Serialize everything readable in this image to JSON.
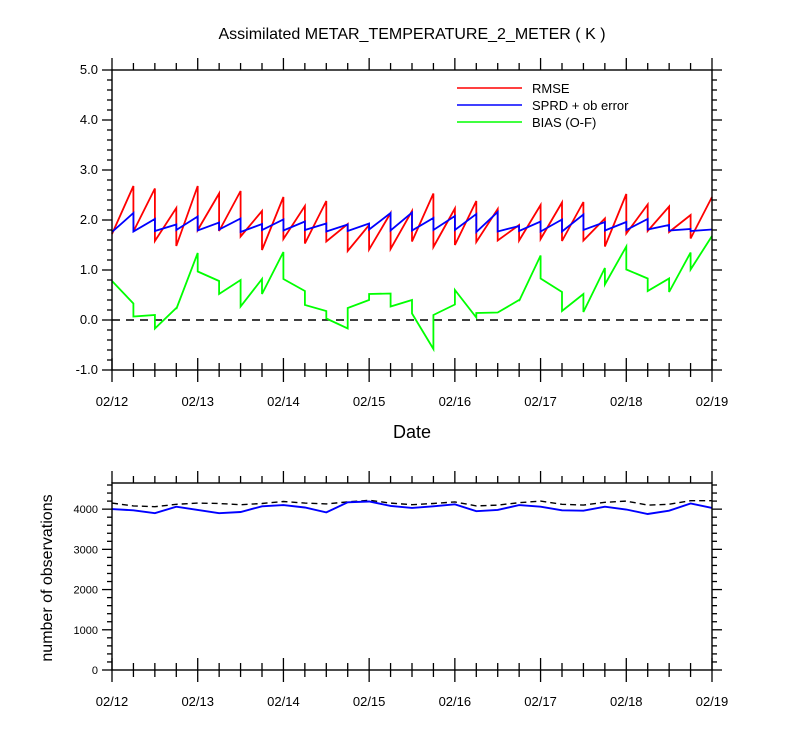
{
  "chart_data": [
    {
      "type": "line",
      "title": "Assimilated METAR_TEMPERATURE_2_METER ( K )",
      "xlabel": "Date",
      "ylabel": "",
      "x_ticklabels": [
        "02/12",
        "02/13",
        "02/14",
        "02/15",
        "02/16",
        "02/17",
        "02/18",
        "02/19"
      ],
      "xlim": [
        0,
        7
      ],
      "ylim": [
        -1.0,
        5.0
      ],
      "y_ticks": [
        -1.0,
        0.0,
        1.0,
        2.0,
        3.0,
        4.0,
        5.0
      ],
      "y_ticklabels": [
        "-1.0",
        "0.0",
        "1.0",
        "2.0",
        "3.0",
        "4.0",
        "5.0"
      ],
      "legend_position": "top-right",
      "reference_line": {
        "y": 0.0,
        "style": "dashed"
      },
      "series": [
        {
          "name": "RMSE",
          "color": "#ff0000",
          "points": [
            [
              0.0,
              1.72
            ],
            [
              0.25,
              2.68
            ],
            [
              0.25,
              1.77
            ],
            [
              0.5,
              2.63
            ],
            [
              0.5,
              1.58
            ],
            [
              0.75,
              2.24
            ],
            [
              0.75,
              1.48
            ],
            [
              1.0,
              2.68
            ],
            [
              1.0,
              1.8
            ],
            [
              1.25,
              2.53
            ],
            [
              1.25,
              1.78
            ],
            [
              1.5,
              2.58
            ],
            [
              1.5,
              1.67
            ],
            [
              1.75,
              2.18
            ],
            [
              1.75,
              1.4
            ],
            [
              2.0,
              2.46
            ],
            [
              2.0,
              1.62
            ],
            [
              2.25,
              2.28
            ],
            [
              2.25,
              1.53
            ],
            [
              2.5,
              2.38
            ],
            [
              2.5,
              1.57
            ],
            [
              2.75,
              1.92
            ],
            [
              2.75,
              1.38
            ],
            [
              3.0,
              1.9
            ],
            [
              3.0,
              1.41
            ],
            [
              3.25,
              2.14
            ],
            [
              3.25,
              1.42
            ],
            [
              3.5,
              2.18
            ],
            [
              3.5,
              1.57
            ],
            [
              3.75,
              2.53
            ],
            [
              3.75,
              1.46
            ],
            [
              4.0,
              2.23
            ],
            [
              4.0,
              1.5
            ],
            [
              4.25,
              2.38
            ],
            [
              4.25,
              1.56
            ],
            [
              4.5,
              2.22
            ],
            [
              4.5,
              1.59
            ],
            [
              4.75,
              1.9
            ],
            [
              4.75,
              1.59
            ],
            [
              5.0,
              2.3
            ],
            [
              5.0,
              1.62
            ],
            [
              5.25,
              2.35
            ],
            [
              5.25,
              1.58
            ],
            [
              5.5,
              2.36
            ],
            [
              5.5,
              1.59
            ],
            [
              5.75,
              2.03
            ],
            [
              5.75,
              1.47
            ],
            [
              6.0,
              2.52
            ],
            [
              6.0,
              1.73
            ],
            [
              6.25,
              2.31
            ],
            [
              6.25,
              1.78
            ],
            [
              6.5,
              2.27
            ],
            [
              6.5,
              1.76
            ],
            [
              6.75,
              2.1
            ],
            [
              6.75,
              1.63
            ],
            [
              7.0,
              2.46
            ]
          ]
        },
        {
          "name": "SPRD + ob error",
          "color": "#0000ff",
          "points": [
            [
              0.0,
              1.76
            ],
            [
              0.25,
              2.14
            ],
            [
              0.25,
              1.77
            ],
            [
              0.5,
              2.02
            ],
            [
              0.5,
              1.78
            ],
            [
              0.75,
              1.91
            ],
            [
              0.75,
              1.8
            ],
            [
              1.0,
              2.07
            ],
            [
              1.0,
              1.79
            ],
            [
              1.25,
              1.95
            ],
            [
              1.25,
              1.81
            ],
            [
              1.5,
              2.03
            ],
            [
              1.5,
              1.76
            ],
            [
              1.75,
              1.92
            ],
            [
              1.75,
              1.8
            ],
            [
              2.0,
              2.01
            ],
            [
              2.0,
              1.79
            ],
            [
              2.25,
              1.97
            ],
            [
              2.25,
              1.8
            ],
            [
              2.5,
              1.93
            ],
            [
              2.5,
              1.77
            ],
            [
              2.75,
              1.91
            ],
            [
              2.75,
              1.78
            ],
            [
              3.0,
              1.93
            ],
            [
              3.0,
              1.81
            ],
            [
              3.25,
              2.14
            ],
            [
              3.25,
              1.79
            ],
            [
              3.5,
              2.15
            ],
            [
              3.5,
              1.79
            ],
            [
              3.75,
              2.04
            ],
            [
              3.75,
              1.8
            ],
            [
              4.0,
              2.08
            ],
            [
              4.0,
              1.8
            ],
            [
              4.25,
              2.12
            ],
            [
              4.25,
              1.76
            ],
            [
              4.5,
              2.16
            ],
            [
              4.5,
              1.77
            ],
            [
              4.75,
              1.88
            ],
            [
              4.75,
              1.78
            ],
            [
              5.0,
              1.97
            ],
            [
              5.0,
              1.77
            ],
            [
              5.25,
              2.01
            ],
            [
              5.25,
              1.77
            ],
            [
              5.5,
              2.11
            ],
            [
              5.5,
              1.8
            ],
            [
              5.75,
              1.96
            ],
            [
              5.75,
              1.79
            ],
            [
              6.0,
              1.96
            ],
            [
              6.0,
              1.8
            ],
            [
              6.25,
              2.02
            ],
            [
              6.25,
              1.81
            ],
            [
              6.5,
              1.9
            ],
            [
              6.5,
              1.79
            ],
            [
              6.75,
              1.82
            ],
            [
              6.75,
              1.78
            ],
            [
              7.0,
              1.81
            ]
          ]
        },
        {
          "name": "BIAS (O-F)",
          "color": "#00ff00",
          "points": [
            [
              0.0,
              0.78
            ],
            [
              0.25,
              0.33
            ],
            [
              0.25,
              0.07
            ],
            [
              0.5,
              0.1
            ],
            [
              0.5,
              -0.17
            ],
            [
              0.75,
              0.24
            ],
            [
              0.75,
              0.22
            ],
            [
              1.0,
              1.34
            ],
            [
              1.0,
              0.97
            ],
            [
              1.25,
              0.78
            ],
            [
              1.25,
              0.52
            ],
            [
              1.5,
              0.8
            ],
            [
              1.5,
              0.27
            ],
            [
              1.75,
              0.82
            ],
            [
              1.75,
              0.52
            ],
            [
              2.0,
              1.36
            ],
            [
              2.0,
              0.82
            ],
            [
              2.25,
              0.58
            ],
            [
              2.25,
              0.3
            ],
            [
              2.5,
              0.18
            ],
            [
              2.5,
              0.03
            ],
            [
              2.75,
              -0.17
            ],
            [
              2.75,
              0.24
            ],
            [
              3.0,
              0.4
            ],
            [
              3.0,
              0.52
            ],
            [
              3.25,
              0.53
            ],
            [
              3.25,
              0.27
            ],
            [
              3.5,
              0.4
            ],
            [
              3.5,
              0.13
            ],
            [
              3.75,
              -0.58
            ],
            [
              3.75,
              0.1
            ],
            [
              4.0,
              0.31
            ],
            [
              4.0,
              0.6
            ],
            [
              4.25,
              0.05
            ],
            [
              4.25,
              0.14
            ],
            [
              4.5,
              0.15
            ],
            [
              4.5,
              0.15
            ],
            [
              4.75,
              0.4
            ],
            [
              4.75,
              0.38
            ],
            [
              5.0,
              1.29
            ],
            [
              5.0,
              0.83
            ],
            [
              5.25,
              0.56
            ],
            [
              5.25,
              0.18
            ],
            [
              5.5,
              0.52
            ],
            [
              5.5,
              0.16
            ],
            [
              5.75,
              1.04
            ],
            [
              5.75,
              0.71
            ],
            [
              6.0,
              1.47
            ],
            [
              6.0,
              1.01
            ],
            [
              6.25,
              0.83
            ],
            [
              6.25,
              0.58
            ],
            [
              6.5,
              0.83
            ],
            [
              6.5,
              0.56
            ],
            [
              6.75,
              1.35
            ],
            [
              6.75,
              1.01
            ],
            [
              7.0,
              1.68
            ]
          ]
        }
      ]
    },
    {
      "type": "line",
      "title": "",
      "xlabel": "",
      "ylabel": "number of observations",
      "x_ticklabels": [
        "02/12",
        "02/13",
        "02/14",
        "02/15",
        "02/16",
        "02/17",
        "02/18",
        "02/19"
      ],
      "xlim": [
        0,
        7
      ],
      "ylim": [
        0,
        4650
      ],
      "y_ticks": [
        0,
        1000,
        2000,
        3000,
        4000
      ],
      "y_ticklabels": [
        "0",
        "1000",
        "2000",
        "3000",
        "4000"
      ],
      "series": [
        {
          "style": "dashed",
          "color": "#000000",
          "x": [
            0.0,
            0.25,
            0.5,
            0.75,
            1.0,
            1.25,
            1.5,
            1.75,
            2.0,
            2.25,
            2.5,
            2.75,
            3.0,
            3.25,
            3.5,
            3.75,
            4.0,
            4.25,
            4.5,
            4.75,
            5.0,
            5.25,
            5.5,
            5.75,
            6.0,
            6.25,
            6.5,
            6.75,
            7.0
          ],
          "values": [
            4150,
            4080,
            4060,
            4120,
            4150,
            4140,
            4110,
            4140,
            4190,
            4150,
            4130,
            4180,
            4220,
            4150,
            4110,
            4140,
            4180,
            4080,
            4100,
            4160,
            4200,
            4120,
            4100,
            4170,
            4200,
            4100,
            4120,
            4210,
            4210
          ]
        },
        {
          "style": "solid",
          "color": "#0000ff",
          "x": [
            0.0,
            0.25,
            0.5,
            0.75,
            1.0,
            1.25,
            1.5,
            1.75,
            2.0,
            2.25,
            2.5,
            2.75,
            3.0,
            3.25,
            3.5,
            3.75,
            4.0,
            4.25,
            4.5,
            4.75,
            5.0,
            5.25,
            5.5,
            5.75,
            6.0,
            6.25,
            6.5,
            6.75,
            7.0
          ],
          "values": [
            4000,
            3970,
            3900,
            4060,
            3980,
            3900,
            3930,
            4070,
            4100,
            4040,
            3920,
            4170,
            4190,
            4080,
            4030,
            4070,
            4120,
            3950,
            3980,
            4100,
            4060,
            3970,
            3960,
            4060,
            3990,
            3880,
            3960,
            4140,
            4030
          ]
        }
      ]
    }
  ]
}
